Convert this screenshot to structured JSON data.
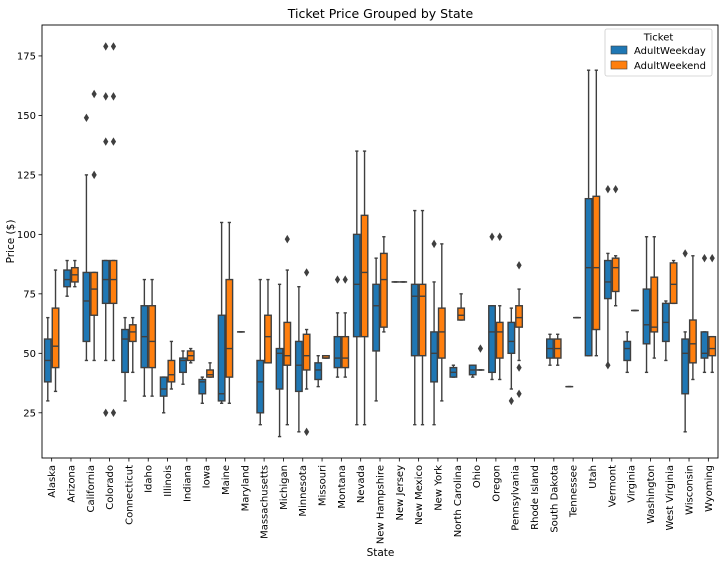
{
  "chart_data": {
    "type": "box",
    "title": "Ticket Price Grouped by State",
    "xlabel": "State",
    "ylabel": "Price ($)",
    "ylim": [
      6,
      188
    ],
    "yticks": [
      25,
      50,
      75,
      100,
      125,
      150,
      175
    ],
    "grid": false,
    "legend": {
      "title": "Ticket",
      "position": "top-right"
    },
    "categories": [
      "Alaska",
      "Arizona",
      "California",
      "Colorado",
      "Connecticut",
      "Idaho",
      "Illinois",
      "Indiana",
      "Iowa",
      "Maine",
      "Maryland",
      "Massachusetts",
      "Michigan",
      "Minnesota",
      "Missouri",
      "Montana",
      "Nevada",
      "New Hampshire",
      "New Jersey",
      "New Mexico",
      "New York",
      "North Carolina",
      "Ohio",
      "Oregon",
      "Pennsylvania",
      "Rhode Island",
      "South Dakota",
      "Tennessee",
      "Utah",
      "Vermont",
      "Virginia",
      "Washington",
      "West Virginia",
      "Wisconsin",
      "Wyoming"
    ],
    "series": [
      {
        "name": "AdultWeekday",
        "color": "#1f77b4",
        "boxes": [
          {
            "min": 30,
            "q1": 38,
            "med": 47,
            "q3": 56,
            "max": 65,
            "fliers": []
          },
          {
            "min": 74,
            "q1": 78,
            "med": 81,
            "q3": 85,
            "max": 89,
            "fliers": []
          },
          {
            "min": 47,
            "q1": 55,
            "med": 72,
            "q3": 84,
            "max": 125,
            "fliers": [
              149
            ]
          },
          {
            "min": 47,
            "q1": 71,
            "med": 81,
            "q3": 89,
            "max": 89,
            "fliers": [
              25,
              139,
              158,
              179
            ]
          },
          {
            "min": 30,
            "q1": 42,
            "med": 56,
            "q3": 60,
            "max": 65,
            "fliers": []
          },
          {
            "min": 32,
            "q1": 44,
            "med": 57,
            "q3": 70,
            "max": 81,
            "fliers": []
          },
          {
            "min": 25,
            "q1": 32,
            "med": 35,
            "q3": 40,
            "max": 40,
            "fliers": []
          },
          {
            "min": 37,
            "q1": 42,
            "med": 47,
            "q3": 48,
            "max": 51,
            "fliers": []
          },
          {
            "min": 29,
            "q1": 33,
            "med": 38,
            "q3": 39,
            "max": 40,
            "fliers": []
          },
          {
            "min": 29,
            "q1": 30,
            "med": 33,
            "q3": 66,
            "max": 105,
            "fliers": []
          },
          {
            "min": 59,
            "q1": 59,
            "med": 59,
            "q3": 59,
            "max": 59,
            "fliers": []
          },
          {
            "min": 20,
            "q1": 25,
            "med": 38,
            "q3": 47,
            "max": 81,
            "fliers": []
          },
          {
            "min": 15,
            "q1": 35,
            "med": 50,
            "q3": 52,
            "max": 79,
            "fliers": []
          },
          {
            "min": 17,
            "q1": 34,
            "med": 45,
            "q3": 55,
            "max": 78,
            "fliers": []
          },
          {
            "min": 36,
            "q1": 39,
            "med": 43,
            "q3": 46,
            "max": 49,
            "fliers": []
          },
          {
            "min": 40,
            "q1": 44,
            "med": 48,
            "q3": 57,
            "max": 67,
            "fliers": [
              81
            ]
          },
          {
            "min": 20,
            "q1": 57,
            "med": 79,
            "q3": 100,
            "max": 135,
            "fliers": []
          },
          {
            "min": 30,
            "q1": 51,
            "med": 70,
            "q3": 79,
            "max": 90,
            "fliers": []
          },
          {
            "min": 80,
            "q1": 80,
            "med": 80,
            "q3": 80,
            "max": 80,
            "fliers": []
          },
          {
            "min": 20,
            "q1": 49,
            "med": 74,
            "q3": 79,
            "max": 110,
            "fliers": []
          },
          {
            "min": 20,
            "q1": 38,
            "med": 50,
            "q3": 59,
            "max": 80,
            "fliers": [
              96
            ]
          },
          {
            "min": 40,
            "q1": 40,
            "med": 42,
            "q3": 44,
            "max": 45,
            "fliers": []
          },
          {
            "min": 40,
            "q1": 41,
            "med": 43,
            "q3": 45,
            "max": 45,
            "fliers": []
          },
          {
            "min": 39,
            "q1": 42,
            "med": 59,
            "q3": 70,
            "max": 70,
            "fliers": [
              99
            ]
          },
          {
            "min": 35,
            "q1": 50,
            "med": 55,
            "q3": 63,
            "max": 69,
            "fliers": [
              30
            ]
          },
          {
            "fliers": []
          },
          {
            "min": 45,
            "q1": 48,
            "med": 52,
            "q3": 56,
            "max": 58,
            "fliers": []
          },
          {
            "min": 36,
            "q1": 36,
            "med": 36,
            "q3": 36,
            "max": 36,
            "fliers": []
          },
          {
            "min": 49,
            "q1": 49,
            "med": 86,
            "q3": 115,
            "max": 169,
            "fliers": []
          },
          {
            "min": 45,
            "q1": 73,
            "med": 80,
            "q3": 89,
            "max": 92,
            "fliers": [
              45,
              119
            ]
          },
          {
            "min": 42,
            "q1": 47,
            "med": 52,
            "q3": 55,
            "max": 59,
            "fliers": []
          },
          {
            "min": 42,
            "q1": 54,
            "med": 62,
            "q3": 77,
            "max": 99,
            "fliers": []
          },
          {
            "min": 47,
            "q1": 55,
            "med": 63,
            "q3": 71,
            "max": 72,
            "fliers": []
          },
          {
            "min": 17,
            "q1": 33,
            "med": 50,
            "q3": 56,
            "max": 59,
            "fliers": [
              92
            ]
          },
          {
            "min": 42,
            "q1": 48,
            "med": 50,
            "q3": 59,
            "max": 59,
            "fliers": [
              90
            ]
          }
        ]
      },
      {
        "name": "AdultWeekend",
        "color": "#ff7f0e",
        "boxes": [
          {
            "min": 34,
            "q1": 44,
            "med": 53,
            "q3": 69,
            "max": 85,
            "fliers": []
          },
          {
            "min": 78,
            "q1": 80,
            "med": 83,
            "q3": 86,
            "max": 89,
            "fliers": []
          },
          {
            "min": 47,
            "q1": 66,
            "med": 77,
            "q3": 84,
            "max": 84,
            "fliers": [
              125,
              159
            ]
          },
          {
            "min": 47,
            "q1": 71,
            "med": 81,
            "q3": 89,
            "max": 89,
            "fliers": [
              25,
              139,
              158,
              179
            ]
          },
          {
            "min": 42,
            "q1": 55,
            "med": 59,
            "q3": 62,
            "max": 65,
            "fliers": []
          },
          {
            "min": 32,
            "q1": 44,
            "med": 55,
            "q3": 70,
            "max": 81,
            "fliers": []
          },
          {
            "min": 35,
            "q1": 38,
            "med": 41,
            "q3": 47,
            "max": 55,
            "fliers": []
          },
          {
            "min": 46,
            "q1": 47,
            "med": 49,
            "q3": 51,
            "max": 52,
            "fliers": []
          },
          {
            "min": 40,
            "q1": 40,
            "med": 41,
            "q3": 43,
            "max": 46,
            "fliers": []
          },
          {
            "min": 29,
            "q1": 40,
            "med": 52,
            "q3": 81,
            "max": 105,
            "fliers": []
          },
          {
            "fliers": []
          },
          {
            "min": 46,
            "q1": 46,
            "med": 57,
            "q3": 66,
            "max": 81,
            "fliers": []
          },
          {
            "min": 20,
            "q1": 45,
            "med": 49,
            "q3": 63,
            "max": 85,
            "fliers": [
              98
            ]
          },
          {
            "min": 35,
            "q1": 43,
            "med": 49,
            "q3": 58,
            "max": 60,
            "fliers": [
              17,
              84
            ]
          },
          {
            "min": 48,
            "q1": 48,
            "med": 48,
            "q3": 49,
            "max": 49,
            "fliers": []
          },
          {
            "min": 40,
            "q1": 44,
            "med": 48,
            "q3": 57,
            "max": 67,
            "fliers": [
              81
            ]
          },
          {
            "min": 20,
            "q1": 57,
            "med": 84,
            "q3": 108,
            "max": 135,
            "fliers": []
          },
          {
            "min": 59,
            "q1": 61,
            "med": 81,
            "q3": 92,
            "max": 99,
            "fliers": []
          },
          {
            "min": 80,
            "q1": 80,
            "med": 80,
            "q3": 80,
            "max": 80,
            "fliers": []
          },
          {
            "min": 20,
            "q1": 49,
            "med": 74,
            "q3": 79,
            "max": 110,
            "fliers": []
          },
          {
            "min": 30,
            "q1": 48,
            "med": 59,
            "q3": 69,
            "max": 96,
            "fliers": []
          },
          {
            "min": 64,
            "q1": 64,
            "med": 66,
            "q3": 69,
            "max": 75,
            "fliers": []
          },
          {
            "min": 43,
            "q1": 43,
            "med": 43,
            "q3": 43,
            "max": 43,
            "fliers": [
              52
            ]
          },
          {
            "min": 39,
            "q1": 48,
            "med": 59,
            "q3": 63,
            "max": 70,
            "fliers": [
              99
            ]
          },
          {
            "min": 47,
            "q1": 61,
            "med": 65,
            "q3": 70,
            "max": 77,
            "fliers": [
              33,
              44,
              87
            ]
          },
          {
            "fliers": []
          },
          {
            "min": 45,
            "q1": 48,
            "med": 52,
            "q3": 56,
            "max": 58,
            "fliers": []
          },
          {
            "min": 65,
            "q1": 65,
            "med": 65,
            "q3": 65,
            "max": 65,
            "fliers": []
          },
          {
            "min": 49,
            "q1": 60,
            "med": 86,
            "q3": 116,
            "max": 169,
            "fliers": []
          },
          {
            "min": 70,
            "q1": 76,
            "med": 86,
            "q3": 90,
            "max": 91,
            "fliers": [
              119
            ]
          },
          {
            "min": 68,
            "q1": 68,
            "med": 68,
            "q3": 68,
            "max": 68,
            "fliers": []
          },
          {
            "min": 48,
            "q1": 59,
            "med": 61,
            "q3": 82,
            "max": 99,
            "fliers": []
          },
          {
            "min": 71,
            "q1": 71,
            "med": 79,
            "q3": 88,
            "max": 89,
            "fliers": []
          },
          {
            "min": 39,
            "q1": 46,
            "med": 54,
            "q3": 64,
            "max": 91,
            "fliers": []
          },
          {
            "min": 42,
            "q1": 49,
            "med": 52,
            "q3": 57,
            "max": 57,
            "fliers": [
              90
            ]
          }
        ]
      }
    ]
  }
}
